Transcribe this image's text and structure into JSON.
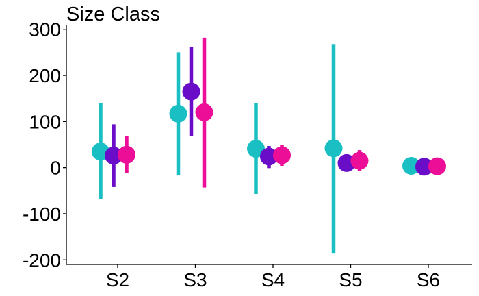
{
  "chart_data": {
    "type": "scatter",
    "title": "Size Class",
    "xlabel": "",
    "ylabel": "",
    "categories": [
      "S2",
      "S3",
      "S4",
      "S5",
      "S6"
    ],
    "ylim": [
      -210,
      310
    ],
    "yticks": [
      -200,
      -100,
      0,
      100,
      200,
      300
    ],
    "grid": false,
    "legend": "none",
    "series": [
      {
        "color": "#1ABFC4",
        "points": [
          {
            "category": "S2",
            "y": 35,
            "low": -68,
            "high": 140
          },
          {
            "category": "S3",
            "y": 117,
            "low": -17,
            "high": 250
          },
          {
            "category": "S4",
            "y": 41,
            "low": -57,
            "high": 140
          },
          {
            "category": "S5",
            "y": 42,
            "low": -185,
            "high": 268
          },
          {
            "category": "S6",
            "y": 4,
            "low": 4,
            "high": 4
          }
        ]
      },
      {
        "color": "#6A0DC9",
        "points": [
          {
            "category": "S2",
            "y": 26,
            "low": -42,
            "high": 94
          },
          {
            "category": "S3",
            "y": 165,
            "low": 68,
            "high": 262
          },
          {
            "category": "S4",
            "y": 24,
            "low": -1,
            "high": 47
          },
          {
            "category": "S5",
            "y": 10,
            "low": 8,
            "high": 12
          },
          {
            "category": "S6",
            "y": 2,
            "low": 2,
            "high": 2
          }
        ]
      },
      {
        "color": "#EC0E97",
        "points": [
          {
            "category": "S2",
            "y": 28,
            "low": -12,
            "high": 69
          },
          {
            "category": "S3",
            "y": 120,
            "low": -43,
            "high": 282
          },
          {
            "category": "S4",
            "y": 27,
            "low": 4,
            "high": 50
          },
          {
            "category": "S5",
            "y": 15,
            "low": -7,
            "high": 38
          },
          {
            "category": "S6",
            "y": 3,
            "low": 3,
            "high": 3
          }
        ]
      }
    ]
  }
}
